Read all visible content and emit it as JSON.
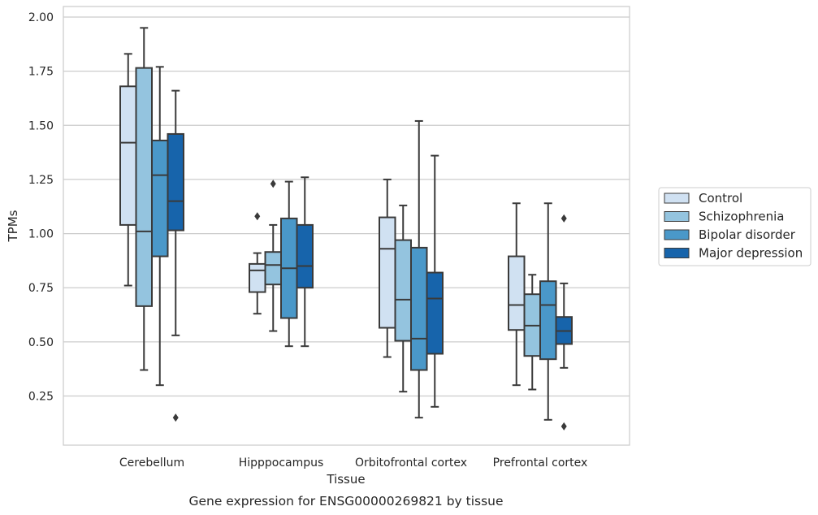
{
  "chart_data": {
    "type": "boxplot",
    "xlabel": "Tissue",
    "ylabel": "TPMs",
    "caption": "Gene expression for ENSG00000269821 by tissue",
    "categories": [
      "Cerebellum",
      "Hipppocampus",
      "Orbitofrontal cortex",
      "Prefrontal cortex"
    ],
    "yticks": [
      "0.25",
      "0.50",
      "0.75",
      "1.00",
      "1.25",
      "1.50",
      "1.75",
      "2.00"
    ],
    "ylim": [
      0.02,
      2.04
    ],
    "grid": true,
    "legend_position": "right",
    "series": [
      {
        "name": "Control",
        "color": "#d0e1f2",
        "boxes": [
          {
            "whislo": 0.76,
            "q1": 1.04,
            "med": 1.42,
            "q3": 1.68,
            "whishi": 1.83,
            "fliers": []
          },
          {
            "whislo": 0.63,
            "q1": 0.73,
            "med": 0.83,
            "q3": 0.86,
            "whishi": 0.91,
            "fliers": [
              1.08
            ]
          },
          {
            "whislo": 0.43,
            "q1": 0.565,
            "med": 0.93,
            "q3": 1.075,
            "whishi": 1.25,
            "fliers": []
          },
          {
            "whislo": 0.3,
            "q1": 0.555,
            "med": 0.67,
            "q3": 0.895,
            "whishi": 1.14,
            "fliers": []
          }
        ]
      },
      {
        "name": "Schizophrenia",
        "color": "#94c4df",
        "boxes": [
          {
            "whislo": 0.37,
            "q1": 0.665,
            "med": 1.01,
            "q3": 1.765,
            "whishi": 1.95,
            "fliers": []
          },
          {
            "whislo": 0.55,
            "q1": 0.765,
            "med": 0.855,
            "q3": 0.915,
            "whishi": 1.04,
            "fliers": [
              1.23
            ]
          },
          {
            "whislo": 0.27,
            "q1": 0.505,
            "med": 0.695,
            "q3": 0.97,
            "whishi": 1.13,
            "fliers": []
          },
          {
            "whislo": 0.28,
            "q1": 0.435,
            "med": 0.575,
            "q3": 0.72,
            "whishi": 0.81,
            "fliers": []
          }
        ]
      },
      {
        "name": "Bipolar disorder",
        "color": "#4a98c9",
        "boxes": [
          {
            "whislo": 0.3,
            "q1": 0.895,
            "med": 1.27,
            "q3": 1.43,
            "whishi": 1.77,
            "fliers": []
          },
          {
            "whislo": 0.48,
            "q1": 0.61,
            "med": 0.84,
            "q3": 1.07,
            "whishi": 1.24,
            "fliers": []
          },
          {
            "whislo": 0.15,
            "q1": 0.37,
            "med": 0.515,
            "q3": 0.935,
            "whishi": 1.52,
            "fliers": []
          },
          {
            "whislo": 0.14,
            "q1": 0.42,
            "med": 0.67,
            "q3": 0.78,
            "whishi": 1.14,
            "fliers": []
          }
        ]
      },
      {
        "name": "Major depression",
        "color": "#1764ab",
        "boxes": [
          {
            "whislo": 0.53,
            "q1": 1.015,
            "med": 1.15,
            "q3": 1.46,
            "whishi": 1.66,
            "fliers": [
              0.15
            ]
          },
          {
            "whislo": 0.48,
            "q1": 0.75,
            "med": 0.85,
            "q3": 1.04,
            "whishi": 1.26,
            "fliers": []
          },
          {
            "whislo": 0.2,
            "q1": 0.445,
            "med": 0.7,
            "q3": 0.82,
            "whishi": 1.36,
            "fliers": []
          },
          {
            "whislo": 0.38,
            "q1": 0.49,
            "med": 0.55,
            "q3": 0.615,
            "whishi": 0.77,
            "fliers": [
              0.11,
              1.07
            ]
          }
        ]
      }
    ]
  }
}
